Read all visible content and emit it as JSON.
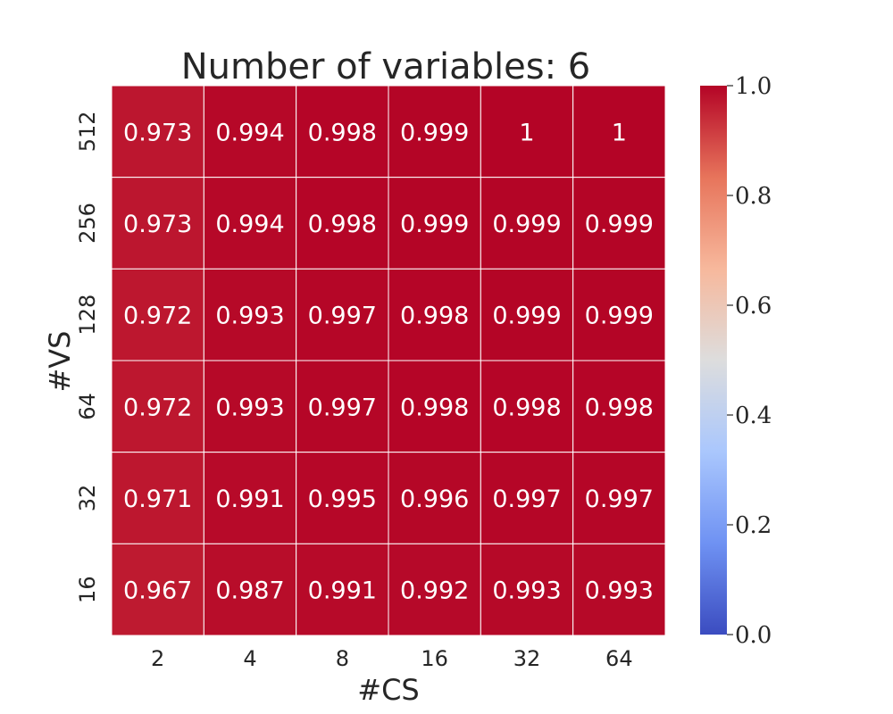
{
  "chart_data": {
    "type": "heatmap",
    "title": "Number of variables: 6",
    "xlabel": "#CS",
    "ylabel": "#VS",
    "x_categories": [
      "2",
      "4",
      "8",
      "16",
      "32",
      "64"
    ],
    "y_categories": [
      "512",
      "256",
      "128",
      "64",
      "32",
      "16"
    ],
    "cells": [
      [
        "0.973",
        "0.994",
        "0.998",
        "0.999",
        "1",
        "1"
      ],
      [
        "0.973",
        "0.994",
        "0.998",
        "0.999",
        "0.999",
        "0.999"
      ],
      [
        "0.972",
        "0.993",
        "0.997",
        "0.998",
        "0.999",
        "0.999"
      ],
      [
        "0.972",
        "0.993",
        "0.997",
        "0.998",
        "0.998",
        "0.998"
      ],
      [
        "0.971",
        "0.991",
        "0.995",
        "0.996",
        "0.997",
        "0.997"
      ],
      [
        "0.967",
        "0.987",
        "0.991",
        "0.992",
        "0.993",
        "0.993"
      ]
    ],
    "colorbar": {
      "range": [
        0.0,
        1.0
      ],
      "ticks": [
        "0.0",
        "0.2",
        "0.4",
        "0.6",
        "0.8",
        "1.0"
      ],
      "colormap": "coolwarm",
      "stops": [
        "#3b4cc0",
        "#6f92f3",
        "#aac7fd",
        "#dddddd",
        "#f7b89c",
        "#e7745b",
        "#b40426"
      ]
    },
    "colors": {
      "cell_text": "#ffffff",
      "cell_border": "#ffffff",
      "text": "#262626"
    }
  }
}
